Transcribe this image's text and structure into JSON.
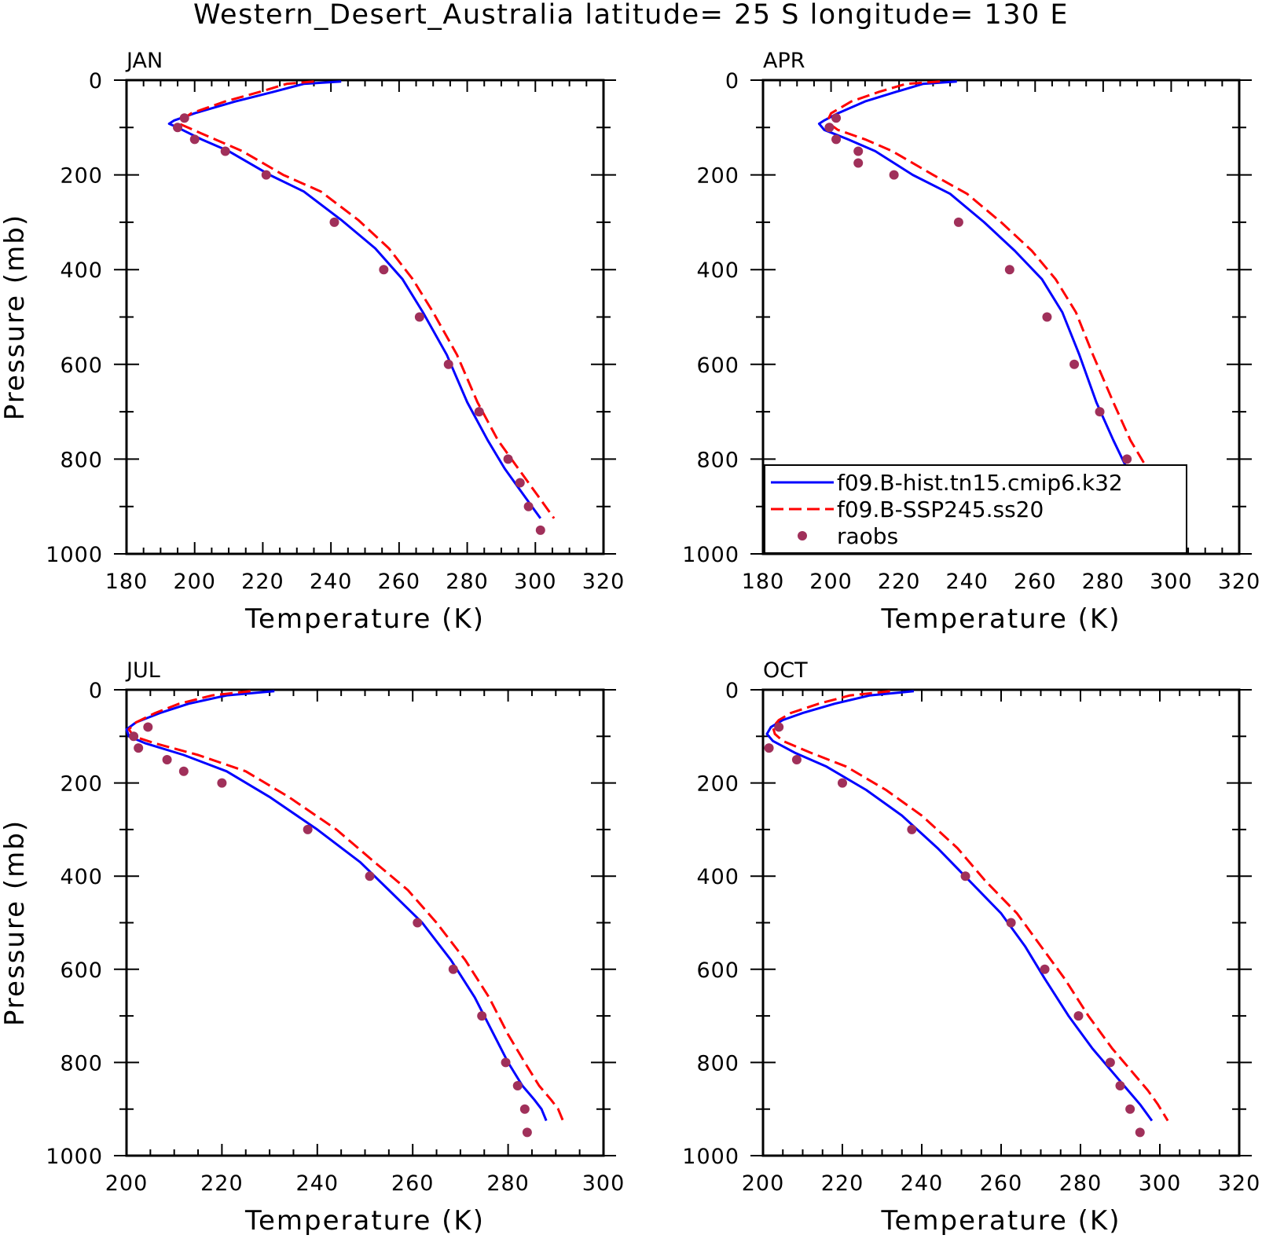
{
  "title": "Western_Desert_Australia  latitude= 25 S longitude= 130 E",
  "colors": {
    "model_hist": "#0000ff",
    "model_ssp": "#ff0000",
    "obs": "#a0305a",
    "axis": "#000000"
  },
  "legend": {
    "items": [
      {
        "label": "f09.B-hist.tn15.cmip6.k32",
        "style": "solid",
        "color": "#0000ff"
      },
      {
        "label": "f09.B-SSP245.ss20",
        "style": "dashed",
        "color": "#ff0000"
      },
      {
        "label": "raobs",
        "style": "marker",
        "color": "#a0305a"
      }
    ],
    "panel": "APR",
    "placement": "bottom-left of APR panel"
  },
  "chart_data": [
    {
      "type": "line",
      "panel": "JAN",
      "xlabel": "Temperature (K)",
      "ylabel": "Pressure (mb)",
      "xlim": [
        180,
        320
      ],
      "ylim": [
        1000,
        0
      ],
      "y_reversed": true,
      "xticks": [
        180,
        200,
        220,
        240,
        260,
        280,
        300,
        320
      ],
      "yticks": [
        0,
        200,
        400,
        600,
        800,
        1000
      ],
      "grid": false,
      "series": [
        {
          "name": "f09.B-hist.tn15.cmip6.k32",
          "style": "solid",
          "x": [
            243,
            232,
            223,
            212,
            200,
            194,
            192.5,
            195,
            202,
            210,
            222,
            232,
            243,
            253,
            261,
            267,
            274,
            280,
            286,
            291,
            296,
            299,
            301.5
          ],
          "y": [
            3,
            8,
            25,
            45,
            70,
            85,
            92,
            100,
            125,
            150,
            200,
            235,
            295,
            355,
            420,
            490,
            580,
            680,
            760,
            820,
            870,
            900,
            925
          ]
        },
        {
          "name": "f09.B-SSP245.ss20",
          "style": "dashed",
          "x": [
            235,
            227,
            219,
            209,
            199,
            196,
            195.5,
            198,
            206,
            214,
            226,
            237,
            248,
            257,
            264,
            270,
            277,
            283,
            289,
            295,
            300,
            303,
            305.5
          ],
          "y": [
            3,
            8,
            25,
            45,
            70,
            85,
            92,
            100,
            125,
            150,
            200,
            235,
            295,
            355,
            420,
            490,
            580,
            680,
            760,
            820,
            870,
            900,
            925
          ]
        },
        {
          "name": "raobs",
          "style": "marker",
          "x": [
            197,
            195,
            200,
            209,
            221,
            241,
            255.5,
            266,
            274.5,
            283.5,
            292,
            295.5,
            298,
            301.5
          ],
          "y": [
            80,
            100,
            125,
            150,
            200,
            300,
            400,
            500,
            600,
            700,
            800,
            850,
            900,
            950
          ]
        }
      ]
    },
    {
      "type": "line",
      "panel": "APR",
      "xlabel": "Temperature (K)",
      "ylabel": "",
      "xlim": [
        180,
        320
      ],
      "ylim": [
        1000,
        0
      ],
      "y_reversed": true,
      "xticks": [
        180,
        200,
        220,
        240,
        260,
        280,
        300,
        320
      ],
      "yticks": [
        0,
        200,
        400,
        600,
        800,
        1000
      ],
      "grid": false,
      "series": [
        {
          "name": "f09.B-hist.tn15.cmip6.k32",
          "style": "solid",
          "x": [
            237,
            227,
            219,
            210,
            202,
            198,
            196.5,
            198,
            205,
            213,
            224,
            235,
            245,
            254,
            262,
            268,
            273,
            278,
            283,
            287,
            291,
            294,
            297
          ],
          "y": [
            3,
            8,
            25,
            45,
            70,
            85,
            92,
            105,
            125,
            150,
            200,
            240,
            300,
            360,
            420,
            490,
            580,
            680,
            760,
            820,
            870,
            900,
            930
          ]
        },
        {
          "name": "f09.B-SSP245.ss20",
          "style": "dashed",
          "x": [
            232,
            222,
            214,
            206,
            200,
            199,
            199.5,
            202,
            210,
            218,
            230,
            240,
            250,
            259,
            266,
            272,
            277,
            283,
            288,
            293,
            296,
            299,
            301.5
          ],
          "y": [
            3,
            8,
            25,
            45,
            70,
            85,
            92,
            105,
            125,
            150,
            200,
            240,
            300,
            360,
            420,
            490,
            580,
            680,
            760,
            820,
            870,
            900,
            930
          ]
        },
        {
          "name": "raobs",
          "style": "marker",
          "x": [
            201.5,
            199.5,
            201.5,
            208,
            208,
            218.5,
            237.5,
            252.5,
            263.5,
            271.5,
            279,
            287,
            290,
            293,
            294.5
          ],
          "y": [
            80,
            100,
            125,
            150,
            175,
            200,
            300,
            400,
            500,
            600,
            700,
            800,
            850,
            900,
            950
          ]
        }
      ]
    },
    {
      "type": "line",
      "panel": "JUL",
      "xlabel": "Temperature (K)",
      "ylabel": "Pressure (mb)",
      "xlim": [
        200,
        300
      ],
      "ylim": [
        1000,
        0
      ],
      "y_reversed": true,
      "xticks": [
        200,
        220,
        240,
        260,
        280,
        300
      ],
      "yticks": [
        0,
        200,
        400,
        600,
        800,
        1000
      ],
      "grid": false,
      "series": [
        {
          "name": "f09.B-hist.tn15.cmip6.k32",
          "style": "solid",
          "x": [
            231,
            221,
            213,
            207,
            202,
            200,
            200.5,
            204,
            212,
            221,
            230,
            240,
            249,
            255,
            262,
            268,
            273,
            277,
            280,
            283,
            285.5,
            287,
            288
          ],
          "y": [
            3,
            12,
            30,
            50,
            70,
            85,
            100,
            115,
            140,
            175,
            230,
            300,
            370,
            430,
            500,
            580,
            660,
            740,
            800,
            850,
            880,
            900,
            925
          ]
        },
        {
          "name": "f09.B-SSP245.ss20",
          "style": "dashed",
          "x": [
            226,
            218,
            211,
            206,
            202,
            200.5,
            201.5,
            206,
            215,
            225,
            234,
            244,
            252,
            259,
            265,
            271,
            276,
            280,
            283.5,
            286.5,
            289,
            290.5,
            291.5
          ],
          "y": [
            3,
            12,
            30,
            50,
            70,
            85,
            100,
            115,
            140,
            175,
            230,
            300,
            370,
            430,
            500,
            580,
            660,
            740,
            800,
            850,
            880,
            900,
            925
          ]
        },
        {
          "name": "raobs",
          "style": "marker",
          "x": [
            204.5,
            201.5,
            202.5,
            208.5,
            212,
            220,
            238,
            251,
            261,
            268.5,
            274.5,
            279.5,
            282,
            283.5,
            284
          ],
          "y": [
            80,
            100,
            125,
            150,
            175,
            200,
            300,
            400,
            500,
            600,
            700,
            800,
            850,
            900,
            950
          ]
        }
      ]
    },
    {
      "type": "line",
      "panel": "OCT",
      "xlabel": "Temperature (K)",
      "ylabel": "",
      "xlim": [
        200,
        320
      ],
      "ylim": [
        1000,
        0
      ],
      "y_reversed": true,
      "xticks": [
        200,
        220,
        240,
        260,
        280,
        300,
        320
      ],
      "yticks": [
        0,
        200,
        400,
        600,
        800,
        1000
      ],
      "grid": false,
      "series": [
        {
          "name": "f09.B-hist.tn15.cmip6.k32",
          "style": "solid",
          "x": [
            238,
            227,
            218,
            210,
            205,
            202,
            201,
            202.5,
            208,
            216,
            226,
            235,
            244,
            252,
            260,
            266,
            271,
            277,
            283,
            288,
            292,
            295,
            298
          ],
          "y": [
            3,
            12,
            30,
            50,
            65,
            80,
            95,
            110,
            135,
            165,
            215,
            270,
            340,
            410,
            480,
            550,
            620,
            700,
            770,
            820,
            860,
            890,
            925
          ]
        },
        {
          "name": "f09.B-SSP245.ss20",
          "style": "dashed",
          "x": [
            232,
            222,
            214,
            207,
            204,
            202.5,
            203,
            205,
            212,
            221,
            231,
            240,
            249,
            256,
            264,
            270,
            276,
            282,
            288,
            293,
            297,
            299.5,
            302
          ],
          "y": [
            3,
            12,
            30,
            50,
            65,
            80,
            95,
            110,
            135,
            165,
            215,
            270,
            340,
            410,
            480,
            550,
            620,
            700,
            770,
            820,
            860,
            890,
            925
          ]
        },
        {
          "name": "raobs",
          "style": "marker",
          "x": [
            204,
            201.5,
            208.5,
            220,
            237.5,
            251,
            262.5,
            271,
            279.5,
            287.5,
            290,
            292.5,
            295
          ],
          "y": [
            80,
            125,
            150,
            200,
            300,
            400,
            500,
            600,
            700,
            800,
            850,
            900,
            950
          ]
        }
      ]
    }
  ]
}
